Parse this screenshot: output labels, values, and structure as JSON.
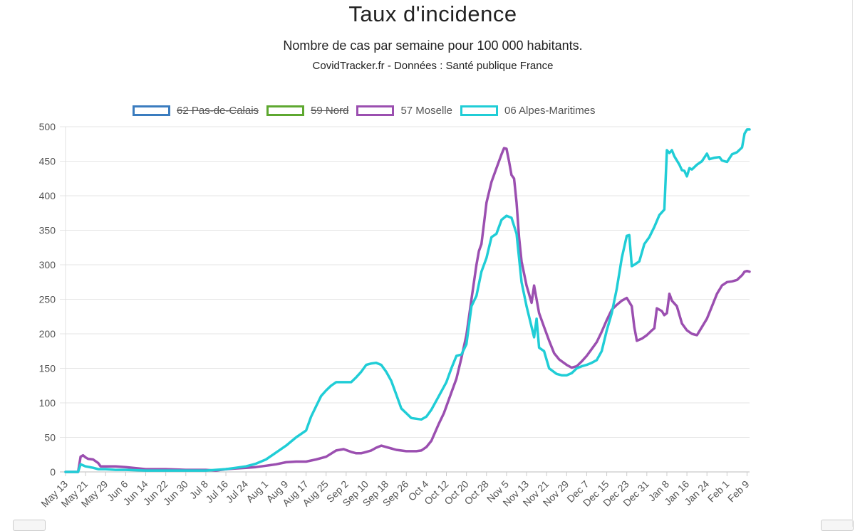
{
  "header": {
    "title": "Taux d'incidence",
    "subtitle": "Nombre de cas par semaine pour 100 000 habitants.",
    "source": "CovidTracker.fr - Données : Santé publique France"
  },
  "chart_data": {
    "type": "line",
    "title": "Taux d'incidence",
    "subtitle": "Nombre de cas par semaine pour 100 000 habitants.",
    "xlabel": "",
    "ylabel": "",
    "ylim": [
      0,
      500
    ],
    "yticks": [
      0,
      50,
      100,
      150,
      200,
      250,
      300,
      350,
      400,
      450,
      500
    ],
    "x_tick_labels": [
      "May 13",
      "May 21",
      "May 29",
      "Jun 6",
      "Jun 14",
      "Jun 22",
      "Jun 30",
      "Jul 8",
      "Jul 16",
      "Jul 24",
      "Aug 1",
      "Aug 9",
      "Aug 17",
      "Aug 25",
      "Sep 2",
      "Sep 10",
      "Sep 18",
      "Sep 26",
      "Oct 4",
      "Oct 12",
      "Oct 20",
      "Oct 28",
      "Nov 5",
      "Nov 13",
      "Nov 21",
      "Nov 29",
      "Dec 7",
      "Dec 15",
      "Dec 23",
      "Dec 31",
      "Jan 8",
      "Jan 16",
      "Jan 24",
      "Feb 1",
      "Feb 9"
    ],
    "grid": true,
    "legend_position": "top",
    "series": [
      {
        "name": "62 Pas-de-Calais",
        "color": "#3a7cbf",
        "hidden": true,
        "points": []
      },
      {
        "name": "59 Nord",
        "color": "#5ea830",
        "hidden": true,
        "points": []
      },
      {
        "name": "57 Moselle",
        "color": "#9b4fb0",
        "hidden": false,
        "points": [
          [
            "May 13",
            0
          ],
          [
            "May 18",
            0
          ],
          [
            "May 19",
            22
          ],
          [
            "May 20",
            24
          ],
          [
            "May 21",
            21
          ],
          [
            "May 22",
            19
          ],
          [
            "May 24",
            18
          ],
          [
            "May 26",
            13
          ],
          [
            "May 27",
            8
          ],
          [
            "May 29",
            8
          ],
          [
            "Jun 2",
            8
          ],
          [
            "Jun 6",
            7
          ],
          [
            "Jun 14",
            4
          ],
          [
            "Jun 22",
            4
          ],
          [
            "Jun 30",
            3
          ],
          [
            "Jul 8",
            3
          ],
          [
            "Jul 12",
            2
          ],
          [
            "Jul 16",
            4
          ],
          [
            "Jul 20",
            5
          ],
          [
            "Jul 24",
            6
          ],
          [
            "Jul 28",
            7
          ],
          [
            "Aug 1",
            9
          ],
          [
            "Aug 5",
            11
          ],
          [
            "Aug 9",
            14
          ],
          [
            "Aug 13",
            15
          ],
          [
            "Aug 17",
            15
          ],
          [
            "Aug 21",
            18
          ],
          [
            "Aug 25",
            22
          ],
          [
            "Aug 29",
            31
          ],
          [
            "Sep 1",
            33
          ],
          [
            "Sep 4",
            29
          ],
          [
            "Sep 6",
            27
          ],
          [
            "Sep 8",
            27
          ],
          [
            "Sep 10",
            29
          ],
          [
            "Sep 12",
            31
          ],
          [
            "Sep 14",
            35
          ],
          [
            "Sep 16",
            38
          ],
          [
            "Sep 18",
            36
          ],
          [
            "Sep 20",
            34
          ],
          [
            "Sep 22",
            32
          ],
          [
            "Sep 26",
            30
          ],
          [
            "Sep 30",
            30
          ],
          [
            "Oct 2",
            31
          ],
          [
            "Oct 4",
            36
          ],
          [
            "Oct 6",
            45
          ],
          [
            "Oct 9",
            70
          ],
          [
            "Oct 11",
            85
          ],
          [
            "Oct 12",
            95
          ],
          [
            "Oct 14",
            115
          ],
          [
            "Oct 16",
            135
          ],
          [
            "Oct 18",
            165
          ],
          [
            "Oct 20",
            198
          ],
          [
            "Oct 22",
            250
          ],
          [
            "Oct 24",
            300
          ],
          [
            "Oct 25",
            320
          ],
          [
            "Oct 26",
            330
          ],
          [
            "Oct 27",
            360
          ],
          [
            "Oct 28",
            390
          ],
          [
            "Oct 30",
            420
          ],
          [
            "Nov 1",
            440
          ],
          [
            "Nov 3",
            460
          ],
          [
            "Nov 4",
            469
          ],
          [
            "Nov 5",
            468
          ],
          [
            "Nov 6",
            450
          ],
          [
            "Nov 7",
            430
          ],
          [
            "Nov 8",
            425
          ],
          [
            "Nov 9",
            390
          ],
          [
            "Nov 10",
            340
          ],
          [
            "Nov 11",
            305
          ],
          [
            "Nov 13",
            270
          ],
          [
            "Nov 15",
            245
          ],
          [
            "Nov 16",
            270
          ],
          [
            "Nov 17",
            250
          ],
          [
            "Nov 18",
            230
          ],
          [
            "Nov 20",
            210
          ],
          [
            "Nov 22",
            190
          ],
          [
            "Nov 24",
            172
          ],
          [
            "Nov 26",
            163
          ],
          [
            "Nov 29",
            155
          ],
          [
            "Dec 1",
            151
          ],
          [
            "Dec 3",
            153
          ],
          [
            "Dec 5",
            160
          ],
          [
            "Dec 7",
            168
          ],
          [
            "Dec 9",
            178
          ],
          [
            "Dec 11",
            188
          ],
          [
            "Dec 13",
            203
          ],
          [
            "Dec 15",
            220
          ],
          [
            "Dec 17",
            235
          ],
          [
            "Dec 19",
            242
          ],
          [
            "Dec 21",
            248
          ],
          [
            "Dec 23",
            252
          ],
          [
            "Dec 25",
            240
          ],
          [
            "Dec 26",
            210
          ],
          [
            "Dec 27",
            190
          ],
          [
            "Dec 29",
            193
          ],
          [
            "Dec 31",
            198
          ],
          [
            "Jan 2",
            205
          ],
          [
            "Jan 3",
            208
          ],
          [
            "Jan 4",
            237
          ],
          [
            "Jan 6",
            233
          ],
          [
            "Jan 7",
            227
          ],
          [
            "Jan 8",
            230
          ],
          [
            "Jan 9",
            258
          ],
          [
            "Jan 10",
            248
          ],
          [
            "Jan 12",
            240
          ],
          [
            "Jan 14",
            215
          ],
          [
            "Jan 16",
            205
          ],
          [
            "Jan 18",
            200
          ],
          [
            "Jan 20",
            198
          ],
          [
            "Jan 22",
            210
          ],
          [
            "Jan 24",
            222
          ],
          [
            "Jan 26",
            240
          ],
          [
            "Jan 28",
            258
          ],
          [
            "Jan 30",
            270
          ],
          [
            "Feb 1",
            275
          ],
          [
            "Feb 3",
            276
          ],
          [
            "Feb 5",
            278
          ],
          [
            "Feb 7",
            285
          ],
          [
            "Feb 8",
            290
          ],
          [
            "Feb 9",
            291
          ],
          [
            "Feb 10",
            290
          ]
        ]
      },
      {
        "name": "06 Alpes-Maritimes",
        "color": "#20cdd6",
        "hidden": false,
        "points": [
          [
            "May 13",
            0
          ],
          [
            "May 18",
            0
          ],
          [
            "May 19",
            11
          ],
          [
            "May 21",
            8
          ],
          [
            "May 24",
            6
          ],
          [
            "May 26",
            4
          ],
          [
            "May 29",
            4
          ],
          [
            "Jun 2",
            3
          ],
          [
            "Jun 6",
            3
          ],
          [
            "Jun 14",
            2
          ],
          [
            "Jun 22",
            2
          ],
          [
            "Jun 30",
            2
          ],
          [
            "Jul 8",
            2
          ],
          [
            "Jul 16",
            4
          ],
          [
            "Jul 20",
            6
          ],
          [
            "Jul 24",
            8
          ],
          [
            "Jul 28",
            12
          ],
          [
            "Aug 1",
            18
          ],
          [
            "Aug 5",
            28
          ],
          [
            "Aug 9",
            38
          ],
          [
            "Aug 13",
            50
          ],
          [
            "Aug 17",
            60
          ],
          [
            "Aug 19",
            80
          ],
          [
            "Aug 21",
            95
          ],
          [
            "Aug 23",
            110
          ],
          [
            "Aug 25",
            118
          ],
          [
            "Aug 27",
            125
          ],
          [
            "Aug 29",
            130
          ],
          [
            "Sep 1",
            130
          ],
          [
            "Sep 4",
            130
          ],
          [
            "Sep 6",
            137
          ],
          [
            "Sep 8",
            145
          ],
          [
            "Sep 10",
            155
          ],
          [
            "Sep 12",
            157
          ],
          [
            "Sep 14",
            158
          ],
          [
            "Sep 16",
            155
          ],
          [
            "Sep 18",
            145
          ],
          [
            "Sep 20",
            132
          ],
          [
            "Sep 22",
            112
          ],
          [
            "Sep 24",
            92
          ],
          [
            "Sep 26",
            85
          ],
          [
            "Sep 28",
            78
          ],
          [
            "Oct 2",
            76
          ],
          [
            "Oct 4",
            80
          ],
          [
            "Oct 6",
            90
          ],
          [
            "Oct 9",
            110
          ],
          [
            "Oct 12",
            130
          ],
          [
            "Oct 14",
            150
          ],
          [
            "Oct 16",
            168
          ],
          [
            "Oct 18",
            170
          ],
          [
            "Oct 20",
            185
          ],
          [
            "Oct 22",
            240
          ],
          [
            "Oct 24",
            255
          ],
          [
            "Oct 26",
            290
          ],
          [
            "Oct 28",
            310
          ],
          [
            "Oct 30",
            340
          ],
          [
            "Nov 1",
            345
          ],
          [
            "Nov 3",
            365
          ],
          [
            "Nov 5",
            371
          ],
          [
            "Nov 7",
            368
          ],
          [
            "Nov 9",
            345
          ],
          [
            "Nov 11",
            275
          ],
          [
            "Nov 13",
            240
          ],
          [
            "Nov 15",
            210
          ],
          [
            "Nov 16",
            195
          ],
          [
            "Nov 17",
            222
          ],
          [
            "Nov 18",
            180
          ],
          [
            "Nov 20",
            175
          ],
          [
            "Nov 22",
            150
          ],
          [
            "Nov 25",
            142
          ],
          [
            "Nov 27",
            140
          ],
          [
            "Nov 29",
            140
          ],
          [
            "Dec 1",
            143
          ],
          [
            "Dec 3",
            150
          ],
          [
            "Dec 5",
            153
          ],
          [
            "Dec 7",
            155
          ],
          [
            "Dec 9",
            158
          ],
          [
            "Dec 11",
            162
          ],
          [
            "Dec 13",
            175
          ],
          [
            "Dec 15",
            205
          ],
          [
            "Dec 17",
            230
          ],
          [
            "Dec 19",
            265
          ],
          [
            "Dec 21",
            310
          ],
          [
            "Dec 23",
            342
          ],
          [
            "Dec 24",
            343
          ],
          [
            "Dec 25",
            298
          ],
          [
            "Dec 26",
            300
          ],
          [
            "Dec 28",
            305
          ],
          [
            "Dec 30",
            330
          ],
          [
            "Jan 1",
            340
          ],
          [
            "Jan 3",
            355
          ],
          [
            "Jan 5",
            372
          ],
          [
            "Jan 7",
            380
          ],
          [
            "Jan 8",
            466
          ],
          [
            "Jan 9",
            462
          ],
          [
            "Jan 10",
            466
          ],
          [
            "Jan 11",
            457
          ],
          [
            "Jan 13",
            445
          ],
          [
            "Jan 14",
            437
          ],
          [
            "Jan 15",
            436
          ],
          [
            "Jan 16",
            428
          ],
          [
            "Jan 17",
            440
          ],
          [
            "Jan 18",
            438
          ],
          [
            "Jan 20",
            445
          ],
          [
            "Jan 22",
            450
          ],
          [
            "Jan 24",
            461
          ],
          [
            "Jan 25",
            453
          ],
          [
            "Jan 27",
            455
          ],
          [
            "Jan 29",
            456
          ],
          [
            "Jan 30",
            451
          ],
          [
            "Feb 1",
            449
          ],
          [
            "Feb 3",
            460
          ],
          [
            "Feb 5",
            463
          ],
          [
            "Feb 7",
            470
          ],
          [
            "Feb 8",
            490
          ],
          [
            "Feb 9",
            496
          ],
          [
            "Feb 10",
            496
          ]
        ]
      }
    ]
  }
}
